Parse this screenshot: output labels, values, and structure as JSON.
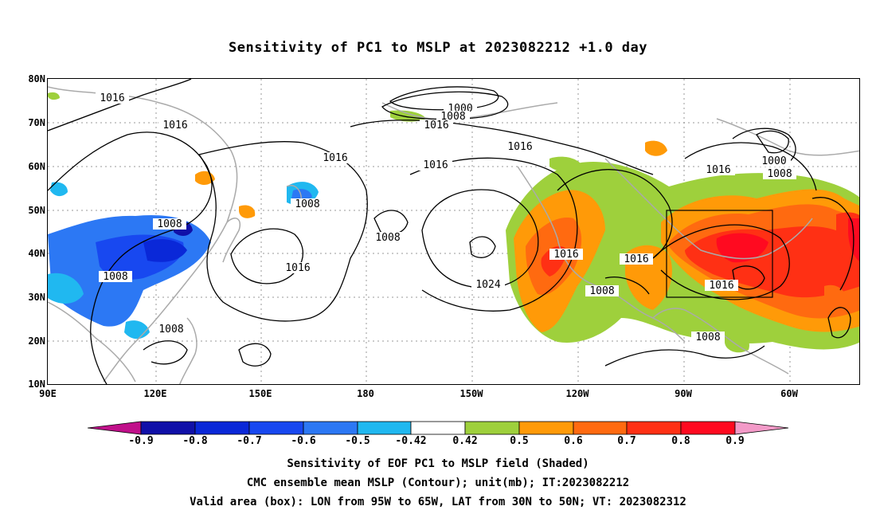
{
  "title": "Sensitivity of PC1 to MSLP at 2023082212 +1.0 day",
  "lat_labels": [
    "80N",
    "70N",
    "60N",
    "50N",
    "40N",
    "30N",
    "20N",
    "10N"
  ],
  "lon_labels": [
    "90E",
    "120E",
    "150E",
    "180",
    "150W",
    "120W",
    "90W",
    "60W"
  ],
  "colorbar": {
    "labels": [
      "-0.9",
      "-0.8",
      "-0.7",
      "-0.6",
      "-0.5",
      "-0.42",
      "0.42",
      "0.5",
      "0.6",
      "0.7",
      "0.8",
      "0.9"
    ],
    "colors": [
      "#c0108a",
      "#1010a8",
      "#0a28d8",
      "#1848f0",
      "#2c78f4",
      "#20b8f0",
      "#ffffff",
      "#9ed03c",
      "#ff9a08",
      "#ff6a10",
      "#ff3014",
      "#ff0a20",
      "#f39ac8"
    ]
  },
  "contour_labels": {
    "c1": "1016",
    "c2": "1016",
    "c3": "1000",
    "c4": "1008",
    "c5": "1016",
    "c6": "1016",
    "c7": "1016",
    "c8": "1016",
    "c9": "1008",
    "c10": "1008",
    "c11": "1008",
    "c12": "1016",
    "c13": "1008",
    "c14": "1008",
    "c15": "1024",
    "c16": "1016",
    "c17": "1016",
    "c18": "1008",
    "c19": "1016",
    "c20": "1016",
    "c21": "1000",
    "c22": "1008",
    "c23": "1008"
  },
  "captions": {
    "line1": "Sensitivity of EOF PC1 to MSLP field (Shaded)",
    "line2": "CMC ensemble mean MSLP (Contour); unit(mb); IT:2023082212",
    "line3": "Valid area (box): LON from 95W to 65W, LAT from 30N to 50N; VT: 2023082312"
  },
  "colors": {
    "coastline": "#aaaaaa",
    "contour": "#000000",
    "grid": "#999999",
    "valid_box": "#000000"
  }
}
